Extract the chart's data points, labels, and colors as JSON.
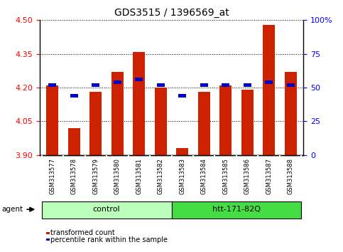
{
  "title": "GDS3515 / 1396569_at",
  "samples": [
    "GSM313577",
    "GSM313578",
    "GSM313579",
    "GSM313580",
    "GSM313581",
    "GSM313582",
    "GSM313583",
    "GSM313584",
    "GSM313585",
    "GSM313586",
    "GSM313587",
    "GSM313588"
  ],
  "transformed_count": [
    4.21,
    4.02,
    4.18,
    4.27,
    4.36,
    4.2,
    3.93,
    4.18,
    4.21,
    4.19,
    4.48,
    4.27
  ],
  "percentile_rank": [
    52,
    44,
    52,
    54,
    56,
    52,
    44,
    52,
    52,
    52,
    54,
    52
  ],
  "ylim_left": [
    3.9,
    4.5
  ],
  "ylim_right": [
    0,
    100
  ],
  "yticks_left": [
    3.9,
    4.05,
    4.2,
    4.35,
    4.5
  ],
  "yticks_right": [
    0,
    25,
    50,
    75,
    100
  ],
  "ytick_labels_right": [
    "0",
    "25",
    "50",
    "75",
    "100%"
  ],
  "bar_color": "#CC2200",
  "square_color": "#0000CC",
  "groups": [
    {
      "label": "control",
      "start": 0,
      "end": 5,
      "color": "#BBFFBB"
    },
    {
      "label": "htt-171-82Q",
      "start": 6,
      "end": 11,
      "color": "#44DD44"
    }
  ],
  "agent_label": "agent",
  "legend_bar_label": "transformed count",
  "legend_sq_label": "percentile rank within the sample",
  "bg_color": "#FFFFFF",
  "tick_area_color": "#CCCCCC"
}
